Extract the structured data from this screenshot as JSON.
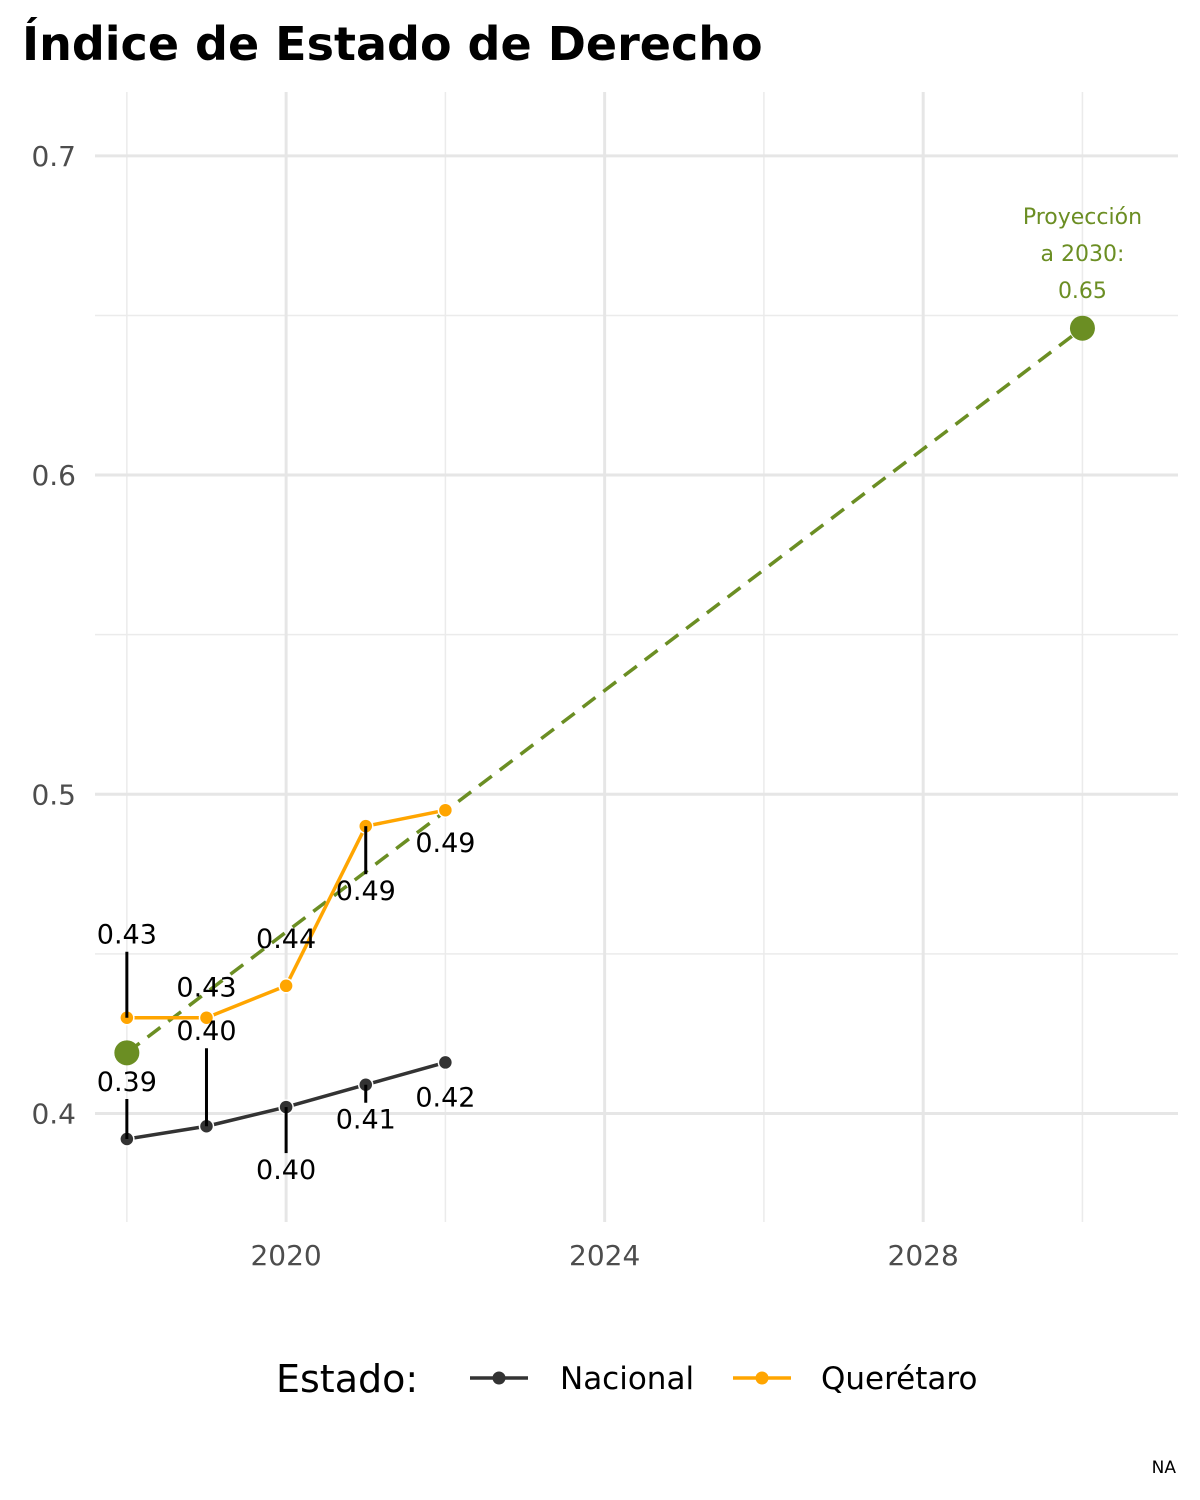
{
  "chart_data": {
    "type": "line",
    "title": "Índice de Estado de Derecho",
    "xlabel": "",
    "ylabel": "",
    "xlim": [
      2017.6,
      2031.2
    ],
    "ylim": [
      0.366,
      0.72
    ],
    "x_ticks": [
      2020,
      2024,
      2028
    ],
    "x_minor_ticks": [
      2018,
      2022,
      2026,
      2030
    ],
    "y_ticks": [
      0.4,
      0.5,
      0.6,
      0.7
    ],
    "y_tick_labels": [
      "0.4",
      "0.5",
      "0.6",
      "0.7"
    ],
    "y_minor_ticks": [
      0.45,
      0.55,
      0.65
    ],
    "grid": true,
    "legend": {
      "title": "Estado:",
      "position": "bottom"
    },
    "series": [
      {
        "name": "Nacional",
        "color": "#333333",
        "x": [
          2018,
          2019,
          2020,
          2021,
          2022
        ],
        "values": [
          0.392,
          0.396,
          0.402,
          0.409,
          0.416
        ],
        "labels": [
          "0.39",
          "0.40",
          "0.40",
          "0.41",
          "0.42"
        ]
      },
      {
        "name": "Querétaro",
        "color": "#ffa500",
        "x": [
          2018,
          2019,
          2020,
          2021,
          2022
        ],
        "values": [
          0.43,
          0.43,
          0.44,
          0.49,
          0.495
        ],
        "labels": [
          "0.43",
          "0.43",
          "0.44",
          "0.49",
          "0.49"
        ]
      }
    ],
    "projection": {
      "color": "#6b8e23",
      "x": [
        2018,
        2030
      ],
      "values": [
        0.419,
        0.646
      ],
      "label_lines": [
        "Proyección",
        "a 2030:",
        "0.65"
      ]
    },
    "caption": "NA"
  }
}
